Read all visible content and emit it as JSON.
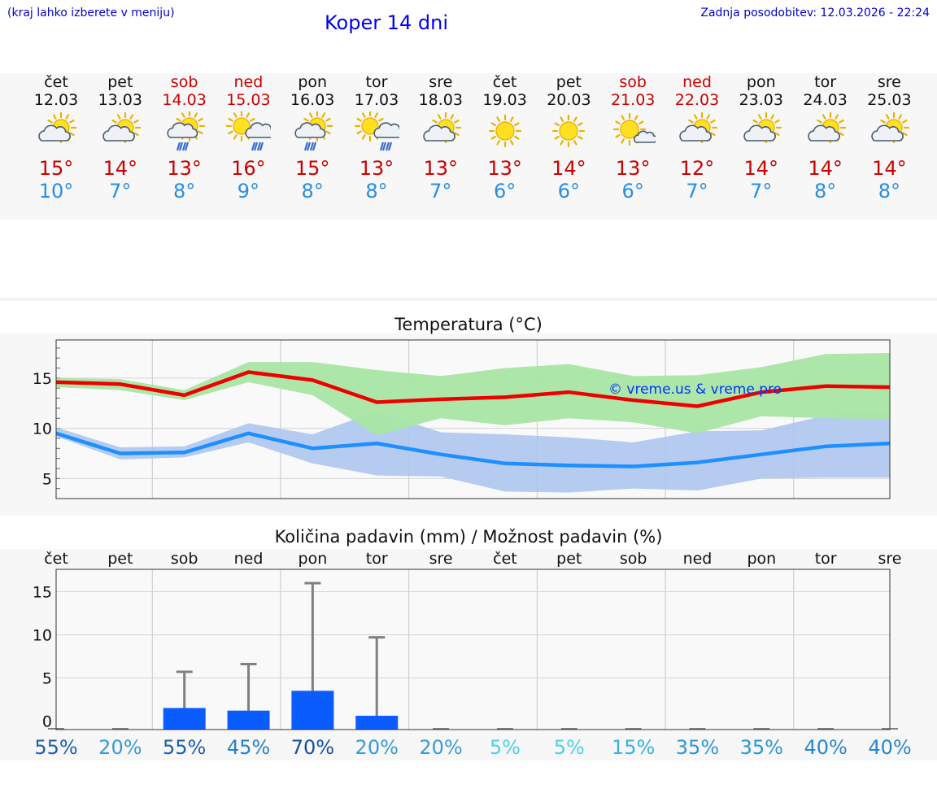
{
  "header": {
    "hint": "(kraj lahko izberete v meniju)",
    "title": "Koper 14 dni",
    "last_update": "Zadnja posodobitev: 12.03.2026 - 22:24"
  },
  "days": [
    {
      "name": "čet",
      "date": "12.03",
      "icon": "partly-cloudy-icon",
      "max": "15°",
      "min": "10°",
      "weekend": false
    },
    {
      "name": "pet",
      "date": "13.03",
      "icon": "partly-cloudy-icon",
      "max": "14°",
      "min": "7°",
      "weekend": false
    },
    {
      "name": "sob",
      "date": "14.03",
      "icon": "partly-cloudy-rain-icon",
      "max": "13°",
      "min": "8°",
      "weekend": true
    },
    {
      "name": "ned",
      "date": "15.03",
      "icon": "sun-cloud-rain-icon",
      "max": "16°",
      "min": "9°",
      "weekend": true
    },
    {
      "name": "pon",
      "date": "16.03",
      "icon": "partly-cloudy-rain-icon",
      "max": "15°",
      "min": "8°",
      "weekend": false
    },
    {
      "name": "tor",
      "date": "17.03",
      "icon": "sun-cloud-rain-icon",
      "max": "13°",
      "min": "8°",
      "weekend": false
    },
    {
      "name": "sre",
      "date": "18.03",
      "icon": "partly-cloudy-icon",
      "max": "13°",
      "min": "7°",
      "weekend": false
    },
    {
      "name": "čet",
      "date": "19.03",
      "icon": "sun-icon",
      "max": "13°",
      "min": "6°",
      "weekend": false
    },
    {
      "name": "pet",
      "date": "20.03",
      "icon": "sun-icon",
      "max": "14°",
      "min": "6°",
      "weekend": false
    },
    {
      "name": "sob",
      "date": "21.03",
      "icon": "sun-small-cloud-icon",
      "max": "13°",
      "min": "6°",
      "weekend": true
    },
    {
      "name": "ned",
      "date": "22.03",
      "icon": "partly-cloudy-icon",
      "max": "12°",
      "min": "7°",
      "weekend": true
    },
    {
      "name": "pon",
      "date": "23.03",
      "icon": "partly-cloudy-icon",
      "max": "14°",
      "min": "7°",
      "weekend": false
    },
    {
      "name": "tor",
      "date": "24.03",
      "icon": "partly-cloudy-icon",
      "max": "14°",
      "min": "8°",
      "weekend": false
    },
    {
      "name": "sre",
      "date": "25.03",
      "icon": "partly-cloudy-icon",
      "max": "14°",
      "min": "8°",
      "weekend": false
    }
  ],
  "colors": {
    "max_line": "#ee0000",
    "min_line": "#1e8fff",
    "max_band": "#a8e6a4",
    "min_band": "#a9c4ef",
    "bar": "#0a5cff",
    "whisker": "#808080",
    "weekend": "#cc0000"
  },
  "chart_data": [
    {
      "type": "line",
      "title": "Temperatura (°C)",
      "watermark": "© vreme.us & vreme.pro",
      "ylim": [
        3,
        18.8
      ],
      "yticks": [
        "5",
        "10",
        "15"
      ],
      "x": [
        0,
        1,
        2,
        3,
        4,
        5,
        6,
        7,
        8,
        9,
        10,
        11,
        12,
        13
      ],
      "series": [
        {
          "name": "max",
          "values": [
            14.6,
            14.4,
            13.3,
            15.6,
            14.8,
            12.6,
            12.9,
            13.1,
            13.6,
            12.8,
            12.2,
            13.6,
            14.2,
            14.1
          ],
          "band_low": [
            14.1,
            13.8,
            12.8,
            14.6,
            13.3,
            9.3,
            11.0,
            10.3,
            11.0,
            10.6,
            9.5,
            11.2,
            11.0,
            10.9
          ],
          "band_high": [
            15.0,
            14.9,
            13.8,
            16.6,
            16.6,
            15.8,
            15.2,
            16.0,
            16.4,
            15.2,
            15.3,
            16.1,
            17.4,
            17.5
          ]
        },
        {
          "name": "min",
          "values": [
            9.5,
            7.5,
            7.6,
            9.5,
            8.0,
            8.5,
            7.4,
            6.5,
            6.3,
            6.2,
            6.6,
            7.4,
            8.2,
            8.5
          ],
          "band_low": [
            9.2,
            6.9,
            7.1,
            8.6,
            6.5,
            5.3,
            5.2,
            3.7,
            3.6,
            4.0,
            3.8,
            5.0,
            5.1,
            5.1
          ],
          "band_high": [
            10.1,
            8.1,
            8.2,
            10.5,
            9.4,
            11.7,
            9.6,
            9.4,
            9.1,
            8.6,
            9.7,
            9.8,
            11.3,
            11.8
          ]
        }
      ]
    },
    {
      "type": "bar",
      "title": "Količina padavin (mm) / Možnost padavin (%)",
      "ylim": [
        -1,
        17.6
      ],
      "yticks": [
        "0",
        "5",
        "10",
        "15"
      ],
      "categories": [
        "čet",
        "pet",
        "sob",
        "ned",
        "pon",
        "tor",
        "sre",
        "čet",
        "pet",
        "sob",
        "ned",
        "pon",
        "tor",
        "sre"
      ],
      "values": [
        0,
        0,
        1.5,
        1.2,
        3.5,
        0.6,
        0,
        0,
        0,
        0,
        0,
        0,
        0,
        0
      ],
      "whisker_max": [
        0,
        0,
        5.7,
        6.6,
        16.0,
        9.7,
        0,
        0,
        0,
        0,
        0,
        0,
        0,
        0
      ],
      "probability": [
        "55%",
        "20%",
        "55%",
        "45%",
        "70%",
        "20%",
        "20%",
        "5%",
        "5%",
        "15%",
        "35%",
        "35%",
        "40%",
        "40%"
      ],
      "probability_colors": [
        "#1c5fab",
        "#3a9ad6",
        "#1c5fab",
        "#2a7ec4",
        "#1450a0",
        "#3a9ad6",
        "#3a9ad6",
        "#4fd0e6",
        "#4fd0e6",
        "#3ab0dd",
        "#2f95d2",
        "#2f95d2",
        "#2a86cc",
        "#2a86cc"
      ]
    }
  ]
}
